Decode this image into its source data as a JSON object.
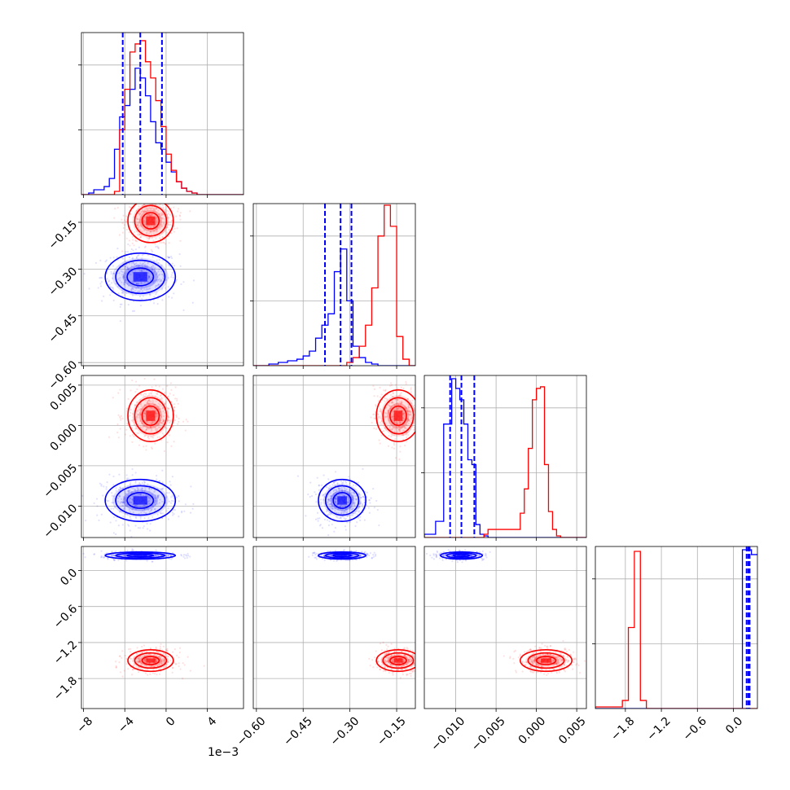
{
  "chart_data": {
    "type": "corner",
    "colors": {
      "series_a": "#0000ff",
      "series_b": "#ff0000",
      "grid": "#b0b0b0"
    },
    "x_offset_label": "1e−3",
    "params": [
      {
        "ticks": [
          -8,
          -4,
          0,
          4
        ],
        "tick_labels": [
          "−8",
          "−4",
          "0",
          "4"
        ],
        "lim": [
          -8.2,
          7.5
        ]
      },
      {
        "ticks": [
          -0.6,
          -0.45,
          -0.3,
          -0.15
        ],
        "tick_labels": [
          "−0.60",
          "−0.45",
          "−0.30",
          "−0.15"
        ],
        "lim": [
          -0.61,
          -0.09
        ]
      },
      {
        "ticks": [
          -0.01,
          -0.005,
          0.0,
          0.005
        ],
        "tick_labels": [
          "−0.010",
          "−0.005",
          "0.000",
          "0.005"
        ],
        "lim": [
          -0.0139,
          0.0062
        ]
      },
      {
        "ticks": [
          -1.8,
          -1.2,
          -0.6,
          0.0
        ],
        "tick_labels": [
          "−1.8",
          "−1.2",
          "−0.6",
          "0.0"
        ],
        "lim": [
          -2.3,
          0.4
        ]
      }
    ],
    "series": [
      {
        "key": "series_a",
        "color": "#0000ff",
        "mean": [
          -2.5,
          -0.325,
          -0.0093,
          0.25
        ],
        "std": [
          1.7,
          0.038,
          0.0013,
          0.03
        ],
        "quantiles": [
          [
            -4.2,
            -2.5,
            -0.4
          ],
          [
            -0.38,
            -0.33,
            -0.295
          ],
          [
            -0.0107,
            -0.0093,
            -0.0077
          ],
          [
            0.22,
            0.25,
            0.27
          ]
        ]
      },
      {
        "key": "series_b",
        "color": "#ff0000",
        "mean": [
          -1.5,
          -0.145,
          0.0012,
          -1.5
        ],
        "std": [
          1.1,
          0.035,
          0.0016,
          0.09
        ],
        "quantiles": []
      }
    ],
    "histograms": [
      {
        "param": 0,
        "bins": [
          -8.2,
          -7.5,
          -7.0,
          -6.0,
          -5.5,
          -5.0,
          -4.5,
          -4.0,
          -3.5,
          -3.0,
          -2.5,
          -2.0,
          -1.5,
          -1.0,
          -0.5,
          0.0,
          0.5,
          1.0,
          1.5,
          2.0,
          2.5,
          3.0,
          3.5,
          4.0,
          7.5
        ],
        "series_a": [
          0.0,
          0.01,
          0.03,
          0.05,
          0.1,
          0.28,
          0.48,
          0.55,
          0.65,
          0.78,
          0.72,
          0.61,
          0.45,
          0.32,
          0.28,
          0.2,
          0.14,
          0.08,
          0.04,
          0.02,
          0.01,
          0.0,
          0.0,
          0.0
        ],
        "series_b": [
          0.0,
          0.0,
          0.0,
          0.0,
          0.0,
          0.02,
          0.4,
          0.65,
          0.88,
          0.93,
          0.95,
          0.82,
          0.72,
          0.58,
          0.42,
          0.25,
          0.15,
          0.08,
          0.04,
          0.02,
          0.01,
          0.0,
          0.0,
          0.0
        ]
      },
      {
        "param": 1,
        "bins": [
          -0.61,
          -0.56,
          -0.53,
          -0.5,
          -0.47,
          -0.45,
          -0.43,
          -0.41,
          -0.39,
          -0.37,
          -0.35,
          -0.33,
          -0.31,
          -0.29,
          -0.27,
          -0.25,
          -0.23,
          -0.21,
          -0.19,
          -0.17,
          -0.15,
          -0.13,
          -0.11,
          -0.09
        ],
        "series_a": [
          0.0,
          0.01,
          0.02,
          0.03,
          0.04,
          0.06,
          0.09,
          0.17,
          0.25,
          0.32,
          0.58,
          0.72,
          0.4,
          0.12,
          0.05,
          0.02,
          0.01,
          0.0,
          0.0,
          0.0,
          0.0,
          0.0,
          0.0
        ],
        "series_b": [
          0.0,
          0.0,
          0.0,
          0.0,
          0.0,
          0.0,
          0.0,
          0.0,
          0.0,
          0.0,
          0.0,
          0.0,
          0.02,
          0.05,
          0.12,
          0.25,
          0.48,
          0.8,
          0.99,
          0.86,
          0.18,
          0.04,
          0.0
        ]
      },
      {
        "param": 2,
        "bins": [
          -0.0139,
          -0.0125,
          -0.0115,
          -0.0105,
          -0.01,
          -0.0095,
          -0.009,
          -0.0085,
          -0.008,
          -0.0075,
          -0.007,
          -0.0065,
          -0.006,
          -0.002,
          -0.0015,
          -0.001,
          -0.0005,
          0.0,
          0.0005,
          0.001,
          0.0015,
          0.002,
          0.0025,
          0.003,
          0.004,
          0.0062
        ],
        "series_a": [
          0.02,
          0.1,
          0.7,
          0.98,
          0.92,
          0.85,
          0.7,
          0.48,
          0.45,
          0.08,
          0.02,
          0.01,
          0.0,
          0.0,
          0.0,
          0.0,
          0.0,
          0.0,
          0.0,
          0.0,
          0.0,
          0.0,
          0.0,
          0.0,
          0.0
        ],
        "series_b": [
          0.0,
          0.0,
          0.0,
          0.0,
          0.0,
          0.0,
          0.0,
          0.0,
          0.0,
          0.0,
          0.0,
          0.02,
          0.05,
          0.15,
          0.3,
          0.55,
          0.85,
          0.92,
          0.93,
          0.45,
          0.16,
          0.05,
          0.01,
          0.0,
          0.0
        ]
      },
      {
        "param": 3,
        "bins": [
          -2.3,
          -1.85,
          -1.75,
          -1.65,
          -1.55,
          -1.45,
          -1.35,
          -1.25,
          0.15,
          0.3,
          0.4
        ],
        "series_a": [
          0.0,
          0.0,
          0.0,
          0.0,
          0.0,
          0.0,
          0.0,
          0.0,
          0.98,
          0.95
        ],
        "series_b": [
          0.01,
          0.05,
          0.5,
          0.97,
          0.05,
          0.0,
          0.0,
          0.0,
          0.0,
          0.0
        ]
      }
    ],
    "grid": true
  }
}
